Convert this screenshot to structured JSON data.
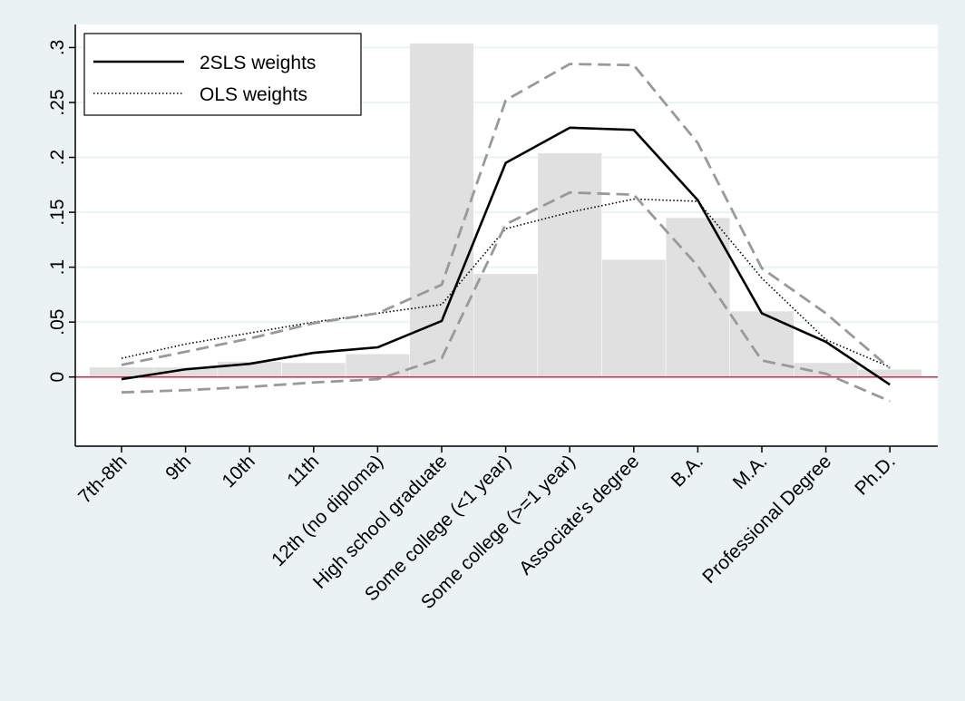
{
  "chart_data": {
    "type": "combo",
    "categories": [
      "7th-8th",
      "9th",
      "10th",
      "11th",
      "12th (no diploma)",
      "High school graduate",
      "Some college (<1 year)",
      "Some college (>=1 year)",
      "Associate's degree",
      "B.A.",
      "M.A.",
      "Professional Degree",
      "Ph.D."
    ],
    "series": [
      {
        "type": "bar",
        "color": "#e0e0e0",
        "values": [
          0.009,
          0.009,
          0.014,
          0.013,
          0.021,
          0.304,
          0.094,
          0.204,
          0.107,
          0.145,
          0.06,
          0.013,
          0.007
        ]
      },
      {
        "type": "line",
        "name": "2SLS weights",
        "color": "#000000",
        "style": "solid",
        "values": [
          -0.002,
          0.007,
          0.012,
          0.022,
          0.027,
          0.051,
          0.195,
          0.227,
          0.225,
          0.161,
          0.058,
          0.032,
          -0.007
        ]
      },
      {
        "type": "line",
        "name": "OLS weights",
        "color": "#000000",
        "style": "dotted",
        "values": [
          0.017,
          0.03,
          0.04,
          0.05,
          0.058,
          0.066,
          0.135,
          0.15,
          0.162,
          0.16,
          0.09,
          0.034,
          0.009
        ]
      },
      {
        "type": "line",
        "color": "#999999",
        "style": "dashed",
        "values": [
          0.011,
          0.023,
          0.035,
          0.049,
          0.058,
          0.084,
          0.252,
          0.285,
          0.284,
          0.213,
          0.099,
          0.058,
          0.008
        ]
      },
      {
        "type": "line",
        "color": "#999999",
        "style": "dashed",
        "values": [
          -0.014,
          -0.012,
          -0.009,
          -0.005,
          -0.002,
          0.017,
          0.139,
          0.168,
          0.166,
          0.101,
          0.015,
          0.003,
          -0.022
        ]
      }
    ],
    "ylim": [
      -0.063,
      0.321
    ],
    "yticks": [
      0,
      {
        "value": 0.05,
        "label": ".05"
      },
      {
        "value": 0.1,
        "label": ".1"
      },
      {
        "value": 0.15,
        "label": ".15"
      },
      {
        "value": 0.2,
        "label": ".2"
      },
      {
        "value": 0.25,
        "label": ".25"
      },
      {
        "value": 0.3,
        "label": ".3"
      }
    ],
    "grid": true,
    "reference_line": {
      "value": 0,
      "color": "#c0304f"
    },
    "legend": "top-left"
  }
}
